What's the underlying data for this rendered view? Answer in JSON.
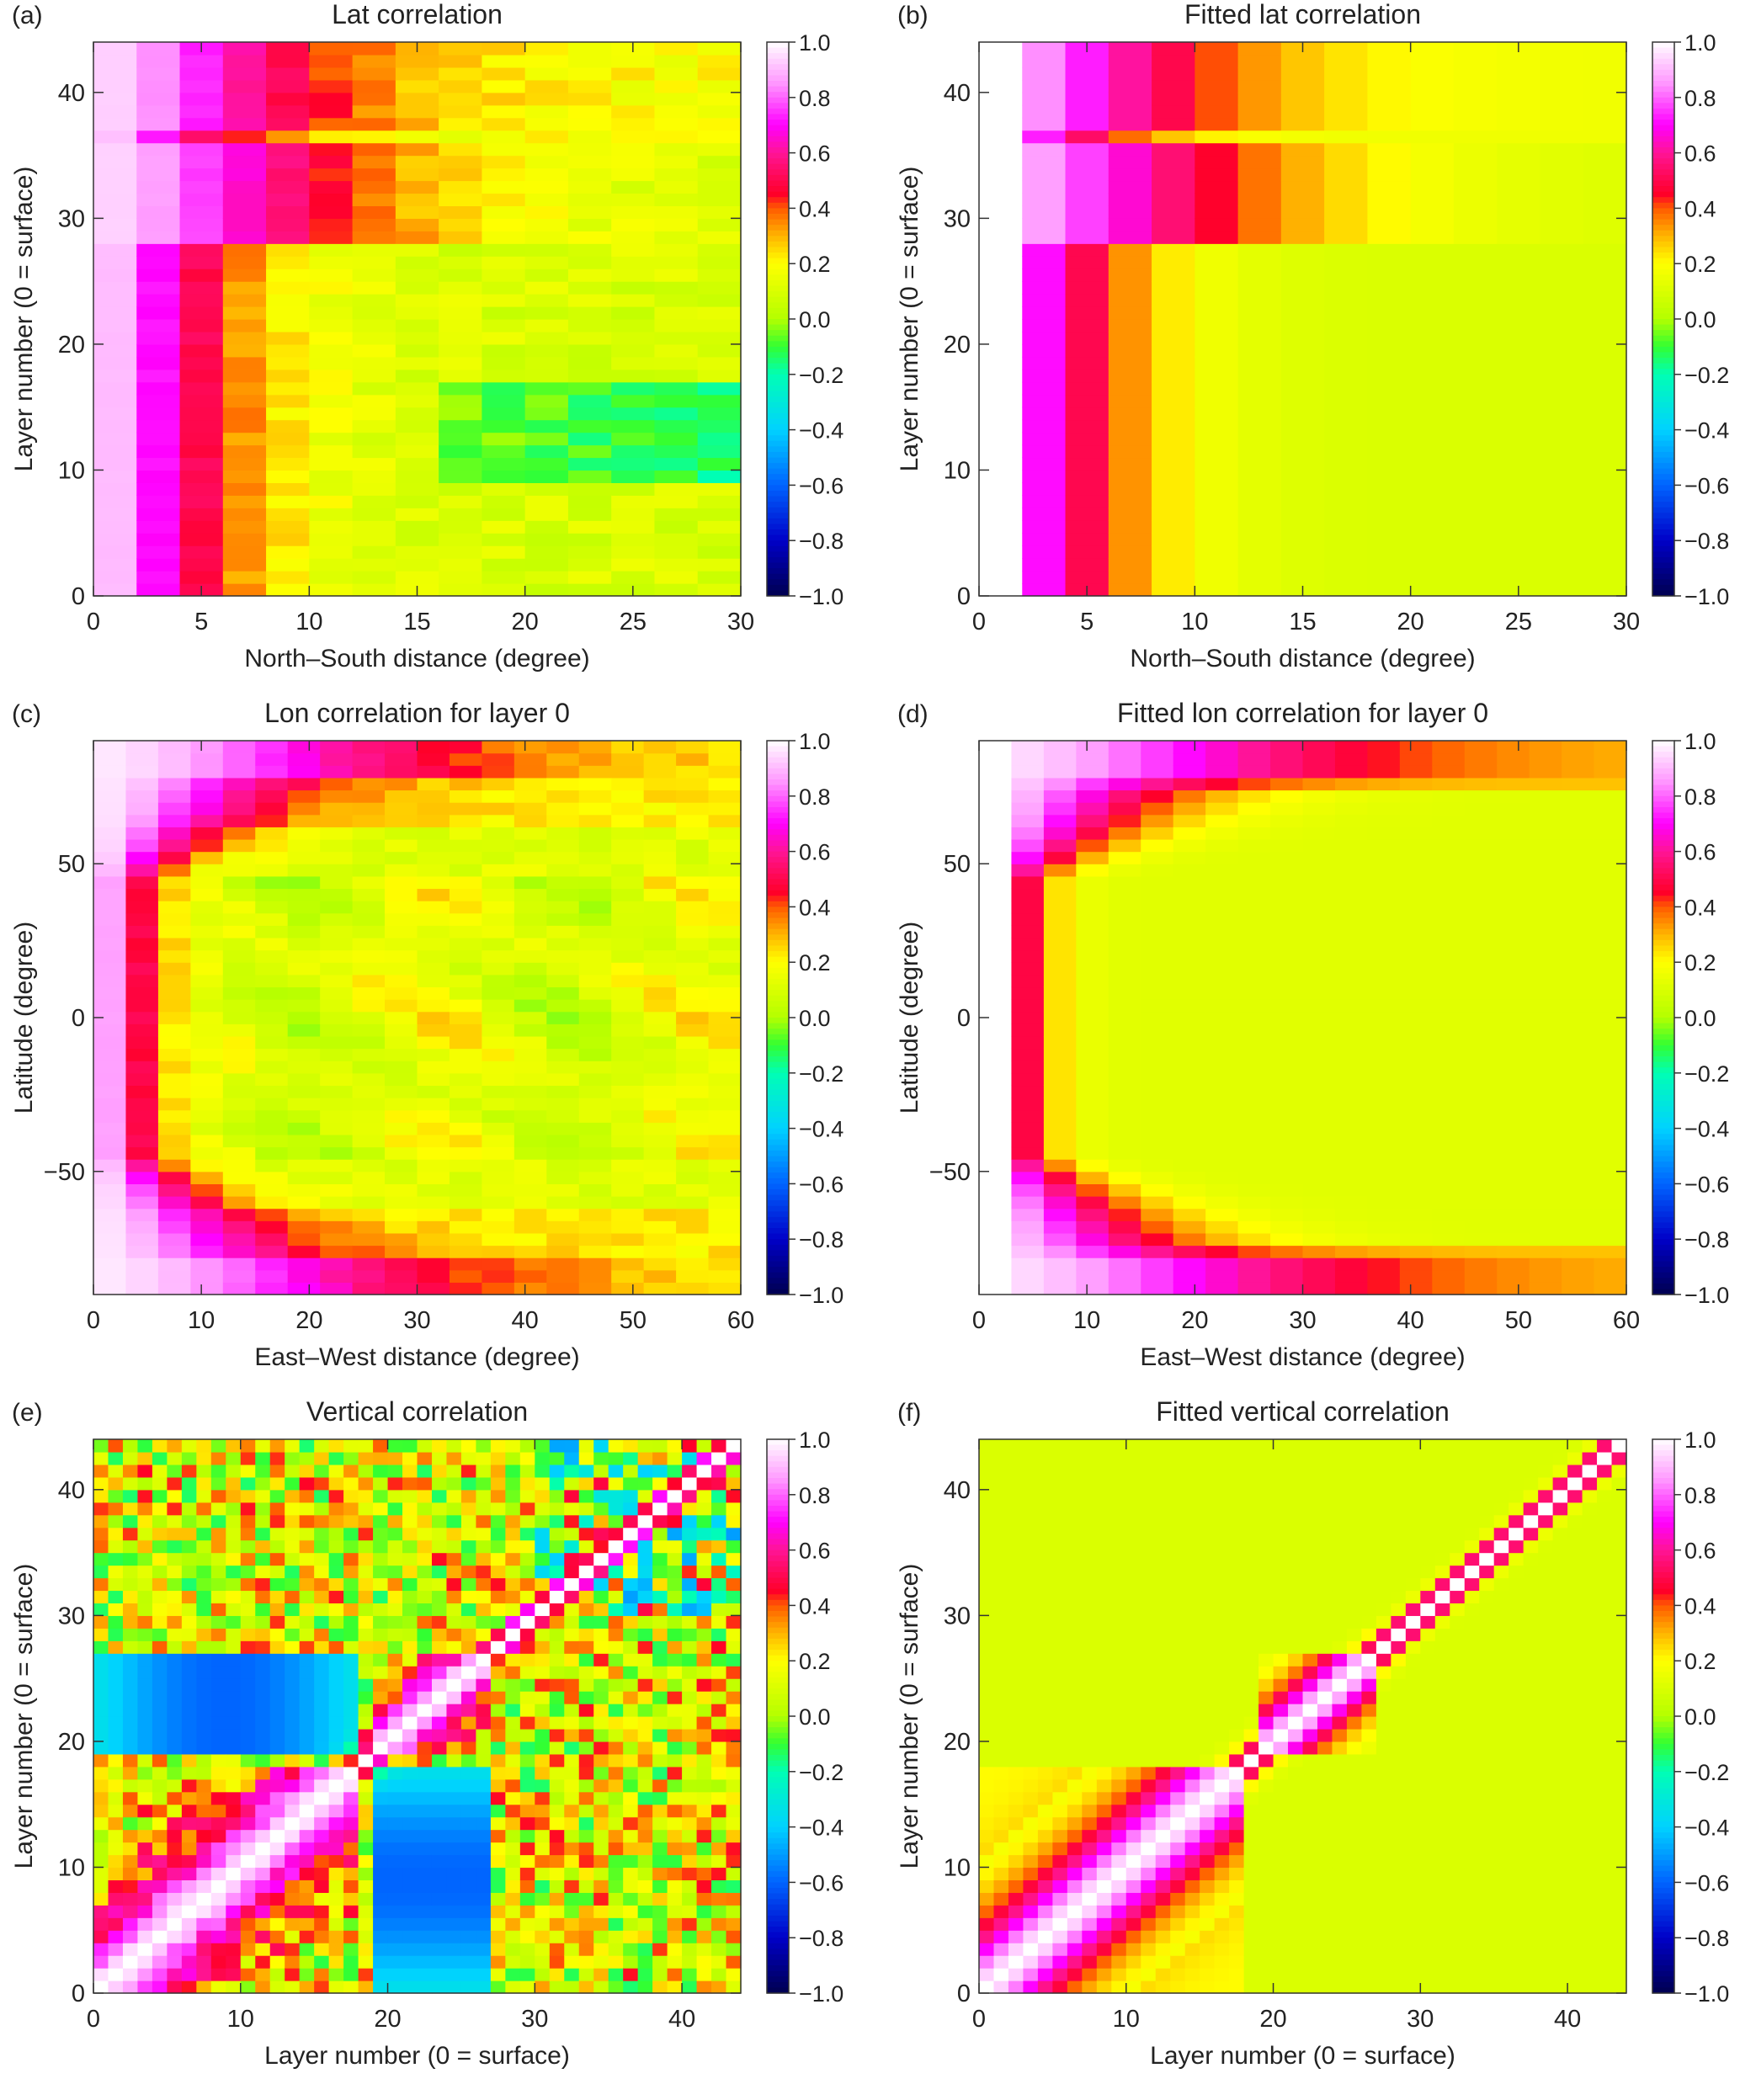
{
  "chart_data": [
    {
      "type": "heatmap",
      "panel_tag": "(a)",
      "title": "Lat correlation",
      "xlabel": "North–South distance (degree)",
      "ylabel": "Layer number (0 = surface)",
      "xlim": [
        0,
        30
      ],
      "ylim": [
        0,
        44
      ],
      "xticks": [
        0,
        5,
        10,
        15,
        20,
        25,
        30
      ],
      "yticks": [
        0,
        10,
        20,
        30,
        40
      ],
      "cell_size": [
        2,
        1
      ],
      "pattern": "lat",
      "fitted": false
    },
    {
      "type": "heatmap",
      "panel_tag": "(b)",
      "title": "Fitted lat correlation",
      "xlabel": "North–South distance (degree)",
      "ylabel": "Layer number (0 = surface)",
      "xlim": [
        0,
        30
      ],
      "ylim": [
        0,
        44
      ],
      "xticks": [
        0,
        5,
        10,
        15,
        20,
        25,
        30
      ],
      "yticks": [
        0,
        10,
        20,
        30,
        40
      ],
      "cell_size": [
        2,
        1
      ],
      "pattern": "lat",
      "fitted": true,
      "blank_x_range": [
        0,
        2
      ]
    },
    {
      "type": "heatmap",
      "panel_tag": "(c)",
      "title": "Lon correlation for layer 0",
      "xlabel": "East–West distance (degree)",
      "ylabel": "Latitude (degree)",
      "xlim": [
        0,
        60
      ],
      "ylim": [
        -90,
        90
      ],
      "xticks": [
        0,
        10,
        20,
        30,
        40,
        50,
        60
      ],
      "yticks": [
        -50,
        0,
        50
      ],
      "ytick_labels": [
        "−50",
        "0",
        "50"
      ],
      "cell_size": [
        3,
        4
      ],
      "pattern": "lon",
      "fitted": false
    },
    {
      "type": "heatmap",
      "panel_tag": "(d)",
      "title": "Fitted lon correlation for layer 0",
      "xlabel": "East–West distance (degree)",
      "ylabel": "Latitude (degree)",
      "xlim": [
        0,
        60
      ],
      "ylim": [
        -90,
        90
      ],
      "xticks": [
        0,
        10,
        20,
        30,
        40,
        50,
        60
      ],
      "yticks": [
        -50,
        0,
        50
      ],
      "ytick_labels": [
        "−50",
        "0",
        "50"
      ],
      "cell_size": [
        3,
        4
      ],
      "pattern": "lon",
      "fitted": true,
      "blank_x_range": [
        0,
        3
      ]
    },
    {
      "type": "heatmap",
      "panel_tag": "(e)",
      "title": "Vertical correlation",
      "xlabel": "Layer number (0 = surface)",
      "ylabel": "Layer number (0 = surface)",
      "xlim": [
        0,
        44
      ],
      "ylim": [
        0,
        44
      ],
      "xticks": [
        0,
        10,
        20,
        30,
        40
      ],
      "yticks": [
        0,
        10,
        20,
        30,
        40
      ],
      "cell_size": [
        1,
        1
      ],
      "pattern": "vert",
      "fitted": false
    },
    {
      "type": "heatmap",
      "panel_tag": "(f)",
      "title": "Fitted vertical correlation",
      "xlabel": "Layer number (0 = surface)",
      "ylabel": "Layer number (0 = surface)",
      "xlim": [
        0,
        44
      ],
      "ylim": [
        0,
        44
      ],
      "xticks": [
        0,
        10,
        20,
        30,
        40
      ],
      "yticks": [
        0,
        10,
        20,
        30,
        40
      ],
      "cell_size": [
        1,
        1
      ],
      "pattern": "vert",
      "fitted": true
    }
  ],
  "colorbar": {
    "range": [
      -1.0,
      1.0
    ],
    "tick_values": [
      1.0,
      0.8,
      0.6,
      0.4,
      0.2,
      0.0,
      -0.2,
      -0.4,
      -0.6,
      -0.8,
      -1.0
    ],
    "tick_labels": [
      "1.0",
      "0.8",
      "0.6",
      "0.4",
      "0.2",
      "0.0",
      "−0.2",
      "−0.4",
      "−0.6",
      "−0.8",
      "−1.0"
    ],
    "colors": [
      [
        -1.0,
        "#000050"
      ],
      [
        -0.8,
        "#0000c8"
      ],
      [
        -0.6,
        "#0064ff"
      ],
      [
        -0.4,
        "#00d2ff"
      ],
      [
        -0.2,
        "#00ffb4"
      ],
      [
        -0.1,
        "#32ff32"
      ],
      [
        0.0,
        "#b4ff00"
      ],
      [
        0.2,
        "#ffff00"
      ],
      [
        0.3,
        "#ffb400"
      ],
      [
        0.4,
        "#ff5a00"
      ],
      [
        0.45,
        "#ff0028"
      ],
      [
        0.6,
        "#ff1496"
      ],
      [
        0.7,
        "#ff00ff"
      ],
      [
        0.85,
        "#ff96ff"
      ],
      [
        1.0,
        "#ffffff"
      ]
    ]
  }
}
